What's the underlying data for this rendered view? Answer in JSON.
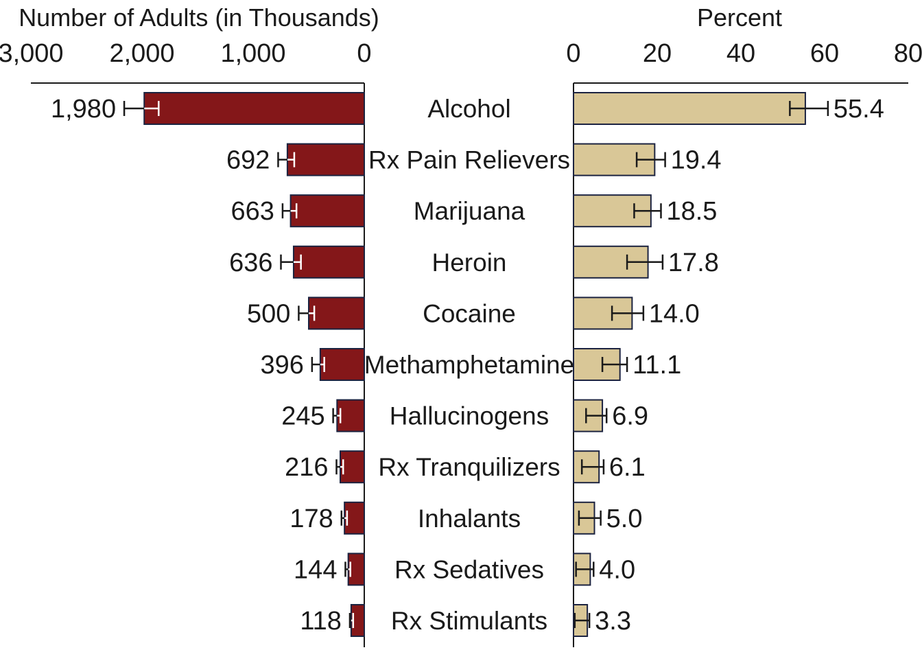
{
  "chart_data": [
    {
      "type": "bar",
      "orientation": "horizontal-reversed",
      "title": "",
      "xlabel": "Number of Adults (in Thousands)",
      "xlim": [
        0,
        3000
      ],
      "ticks": [
        3000,
        2000,
        1000,
        0
      ],
      "tick_labels": [
        "3,000",
        "2,000",
        "1,000",
        "0"
      ],
      "categories": [
        "Alcohol",
        "Rx Pain Relievers",
        "Marijuana",
        "Heroin",
        "Cocaine",
        "Methamphetamine",
        "Hallucinogens",
        "Rx Tranquilizers",
        "Inhalants",
        "Rx Sedatives",
        "Rx Stimulants"
      ],
      "values": [
        1980,
        692,
        663,
        636,
        500,
        396,
        245,
        216,
        178,
        144,
        118
      ],
      "value_labels": [
        "1,980",
        "692",
        "663",
        "636",
        "500",
        "396",
        "245",
        "216",
        "178",
        "144",
        "118"
      ],
      "error_low": [
        1850,
        630,
        610,
        570,
        450,
        360,
        215,
        190,
        155,
        125,
        100
      ],
      "error_high": [
        2160,
        775,
        735,
        750,
        590,
        470,
        280,
        250,
        205,
        170,
        130
      ],
      "bar_color": "#841719",
      "error_bar_color": "#ffffff"
    },
    {
      "type": "bar",
      "orientation": "horizontal",
      "title": "",
      "xlabel": "Percent",
      "xlim": [
        0,
        80
      ],
      "ticks": [
        0,
        20,
        40,
        60,
        80
      ],
      "tick_labels": [
        "0",
        "20",
        "40",
        "60",
        "80"
      ],
      "categories": [
        "Alcohol",
        "Rx Pain Relievers",
        "Marijuana",
        "Heroin",
        "Cocaine",
        "Methamphetamine",
        "Hallucinogens",
        "Rx Tranquilizers",
        "Inhalants",
        "Rx Sedatives",
        "Rx Stimulants"
      ],
      "values": [
        55.4,
        19.4,
        18.5,
        17.8,
        14.0,
        11.1,
        6.9,
        6.1,
        5.0,
        4.0,
        3.3
      ],
      "value_labels": [
        "55.4",
        "19.4",
        "18.5",
        "17.8",
        "14.0",
        "11.1",
        "6.9",
        "6.1",
        "5.0",
        "4.0",
        "3.3"
      ],
      "error_low": [
        51.7,
        15.1,
        14.5,
        12.8,
        9.2,
        6.9,
        3.0,
        2.0,
        1.3,
        0.6,
        0.3
      ],
      "error_high": [
        60.8,
        21.9,
        20.9,
        21.3,
        16.7,
        12.8,
        7.9,
        7.2,
        6.5,
        4.8,
        3.8
      ],
      "bar_color": "#d9c797",
      "error_bar_color": "#1a1a1a"
    }
  ]
}
